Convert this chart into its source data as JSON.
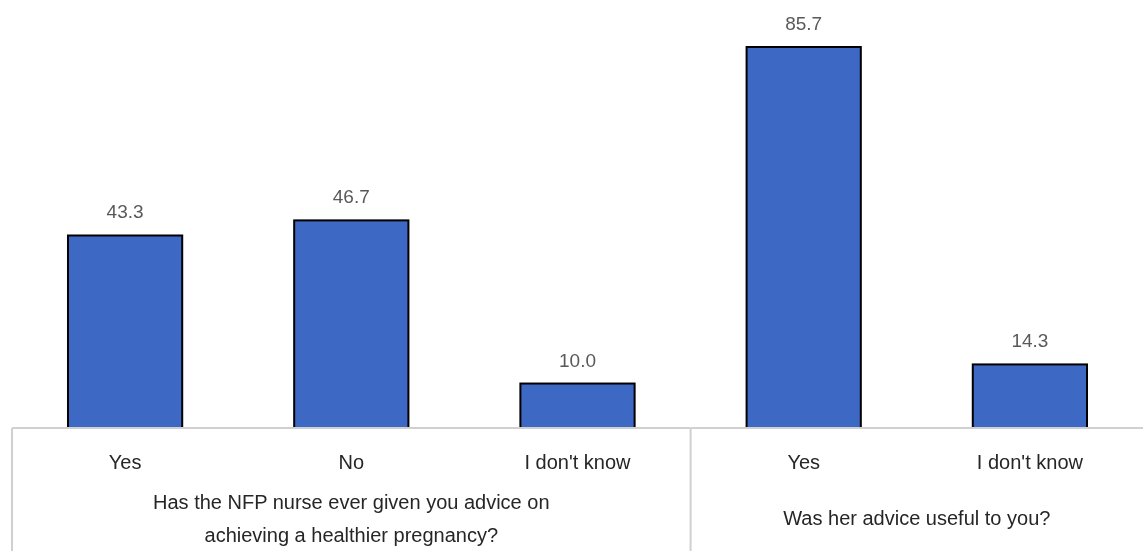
{
  "chart_data": [
    {
      "type": "bar",
      "categories": [
        "Yes",
        "No",
        "I don't know"
      ],
      "values": [
        43.3,
        46.7,
        10.0
      ],
      "value_labels": [
        "43.3",
        "46.7",
        "10.0"
      ],
      "color": "#3d69c4",
      "xlabel": "Has the NFP nurse ever given you advice on achieving a healthier pregnancy?"
    },
    {
      "type": "bar",
      "categories": [
        "Yes",
        "I don't know"
      ],
      "values": [
        85.7,
        14.3
      ],
      "value_labels": [
        "85.7",
        "14.3"
      ],
      "color": "#3d69c4",
      "xlabel": "Was her advice useful to you?"
    }
  ]
}
